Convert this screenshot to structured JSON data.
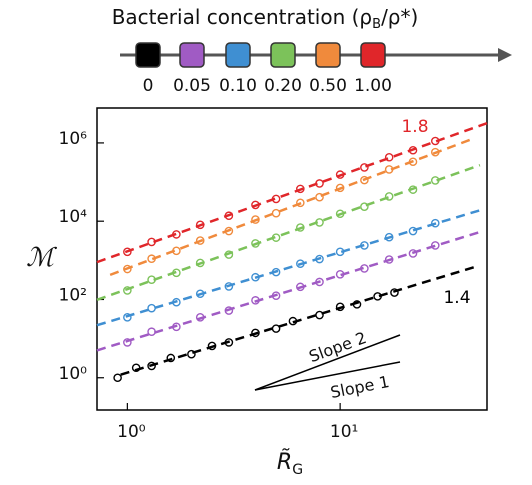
{
  "chart_data": {
    "type": "scatter",
    "legend_title": [
      "Bacterial concentration (ρ",
      "B",
      "/ρ*)"
    ],
    "x_label": [
      "R̃",
      "G"
    ],
    "y_label": "ℳ",
    "xscale": "log",
    "yscale": "log",
    "xlim": [
      0.72,
      49
    ],
    "ylim": [
      0.15,
      7800000
    ],
    "xticks": [
      {
        "value": 1,
        "label": "10⁰"
      },
      {
        "value": 10,
        "label": "10¹"
      }
    ],
    "yticks": [
      {
        "value": 1,
        "label": "10⁰"
      },
      {
        "value": 100,
        "label": "10²"
      },
      {
        "value": 10000,
        "label": "10⁴"
      },
      {
        "value": 1000000,
        "label": "10⁶"
      }
    ],
    "annotations": [
      {
        "text": "1.8",
        "color": "#e0262a"
      },
      {
        "text": "1.4",
        "color": "#000000"
      },
      {
        "text": "Slope 2",
        "color": "#000000"
      },
      {
        "text": "Slope 1",
        "color": "#000000"
      }
    ],
    "series": [
      {
        "name": "0",
        "color": "#000000",
        "x": [
          0.9,
          1.1,
          1.3,
          1.6,
          2,
          2.5,
          3,
          4,
          5,
          6,
          8,
          10,
          12,
          15,
          18
        ],
        "values": [
          1.0,
          1.8,
          2.0,
          3.2,
          4,
          6.5,
          8,
          14,
          18,
          28,
          40,
          65,
          75,
          120,
          150
        ],
        "fit_x": [
          0.93,
          43
        ],
        "fit_y": [
          1.2,
          680
        ]
      },
      {
        "name": "0.05",
        "color": "#a05bc4",
        "x": [
          1,
          1.3,
          1.7,
          2.2,
          3,
          4,
          5,
          6.5,
          8,
          10,
          13,
          17,
          22,
          28
        ],
        "values": [
          8,
          15,
          20,
          35,
          52,
          95,
          125,
          210,
          280,
          440,
          620,
          1050,
          1500,
          2400
        ],
        "fit_x": [
          0.72,
          45.4
        ],
        "fit_y": [
          5,
          5300
        ]
      },
      {
        "name": "0.10",
        "color": "#3f8fd2",
        "x": [
          1,
          1.3,
          1.7,
          2.2,
          3,
          4,
          5,
          6.5,
          8,
          10,
          13,
          17,
          22,
          28
        ],
        "values": [
          35,
          60,
          85,
          140,
          215,
          370,
          500,
          820,
          1080,
          1650,
          2400,
          3900,
          5600,
          8900
        ],
        "fit_x": [
          0.72,
          45.4
        ],
        "fit_y": [
          22,
          19000
        ]
      },
      {
        "name": "0.20",
        "color": "#7cc25a",
        "x": [
          1,
          1.3,
          1.7,
          2.2,
          3,
          4,
          5,
          6.5,
          8,
          10,
          13,
          17,
          22,
          28
        ],
        "values": [
          170,
          320,
          480,
          860,
          1400,
          2700,
          3800,
          6900,
          9300,
          15500,
          23500,
          43000,
          64000,
          110000
        ],
        "fit_x": [
          0.72,
          45.4
        ],
        "fit_y": [
          98,
          270000
        ]
      },
      {
        "name": "0.50",
        "color": "#f08a3c",
        "x": [
          1,
          1.3,
          1.7,
          2.2,
          3,
          4,
          5,
          6.5,
          8,
          10,
          13,
          17,
          22,
          28
        ],
        "values": [
          600,
          1100,
          1750,
          3200,
          5600,
          11000,
          16000,
          29500,
          41000,
          71000,
          112000,
          210000,
          330000,
          580000
        ],
        "fit_x": [
          0.83,
          40.8
        ],
        "fit_y": [
          425,
          1200000
        ]
      },
      {
        "name": "1.00",
        "color": "#e0262a",
        "x": [
          1,
          1.3,
          1.7,
          2.2,
          3,
          4,
          5,
          6.5,
          8,
          10,
          13,
          17,
          22,
          28
        ],
        "values": [
          1650,
          2950,
          4600,
          8100,
          13800,
          26000,
          37000,
          67000,
          92000,
          155000,
          236000,
          430000,
          650000,
          1120000
        ],
        "fit_x": [
          0.72,
          49
        ],
        "fit_y": [
          900,
          3200000
        ]
      }
    ]
  }
}
